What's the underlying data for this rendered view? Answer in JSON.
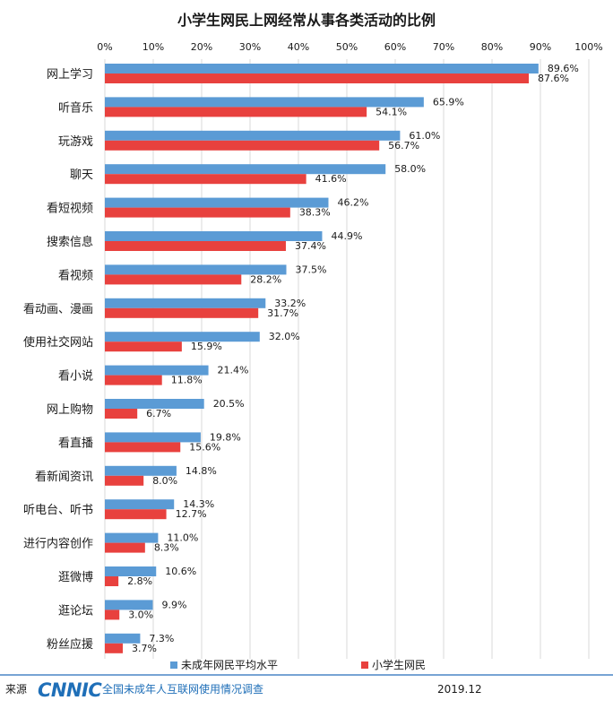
{
  "chart_data": {
    "type": "bar",
    "orientation": "horizontal",
    "title": "小学生网民上网经常从事各类活动的比例",
    "xlim": [
      0,
      100
    ],
    "x_ticks": [
      "0%",
      "10%",
      "20%",
      "30%",
      "40%",
      "50%",
      "60%",
      "70%",
      "80%",
      "90%",
      "100%"
    ],
    "grid": true,
    "legend_position": "bottom",
    "categories": [
      "网上学习",
      "听音乐",
      "玩游戏",
      "聊天",
      "看短视频",
      "搜索信息",
      "看视频",
      "看动画、漫画",
      "使用社交网站",
      "看小说",
      "网上购物",
      "看直播",
      "看新闻资讯",
      "听电台、听书",
      "进行内容创作",
      "逛微博",
      "逛论坛",
      "粉丝应援"
    ],
    "series": [
      {
        "name": "未成年网民平均水平",
        "color": "#5b9bd5",
        "values": [
          89.6,
          65.9,
          61.0,
          58.0,
          46.2,
          44.9,
          37.5,
          33.2,
          32.0,
          21.4,
          20.5,
          19.8,
          14.8,
          14.3,
          11.0,
          10.6,
          9.9,
          7.3
        ],
        "labels": [
          "89.6%",
          "65.9%",
          "61.0%",
          "58.0%",
          "46.2%",
          "44.9%",
          "37.5%",
          "33.2%",
          "32.0%",
          "21.4%",
          "20.5%",
          "19.8%",
          "14.8%",
          "14.3%",
          "11.0%",
          "10.6%",
          "9.9%",
          "7.3%"
        ]
      },
      {
        "name": "小学生网民",
        "color": "#e8413e",
        "values": [
          87.6,
          54.1,
          56.7,
          41.6,
          38.3,
          37.4,
          28.2,
          31.7,
          15.9,
          11.8,
          6.7,
          15.6,
          8.0,
          12.7,
          8.3,
          2.8,
          3.0,
          3.7
        ],
        "labels": [
          "87.6%",
          "54.1%",
          "56.7%",
          "41.6%",
          "38.3%",
          "37.4%",
          "28.2%",
          "31.7%",
          "15.9%",
          "11.8%",
          "6.7%",
          "15.6%",
          "8.0%",
          "12.7%",
          "8.3%",
          "2.8%",
          "3.0%",
          "3.7%"
        ]
      }
    ]
  },
  "footer": {
    "source_label": "来源",
    "logo_text": "CNNIC",
    "org_name": "全国未成年人互联网使用情况调查",
    "date": "2019.12"
  }
}
